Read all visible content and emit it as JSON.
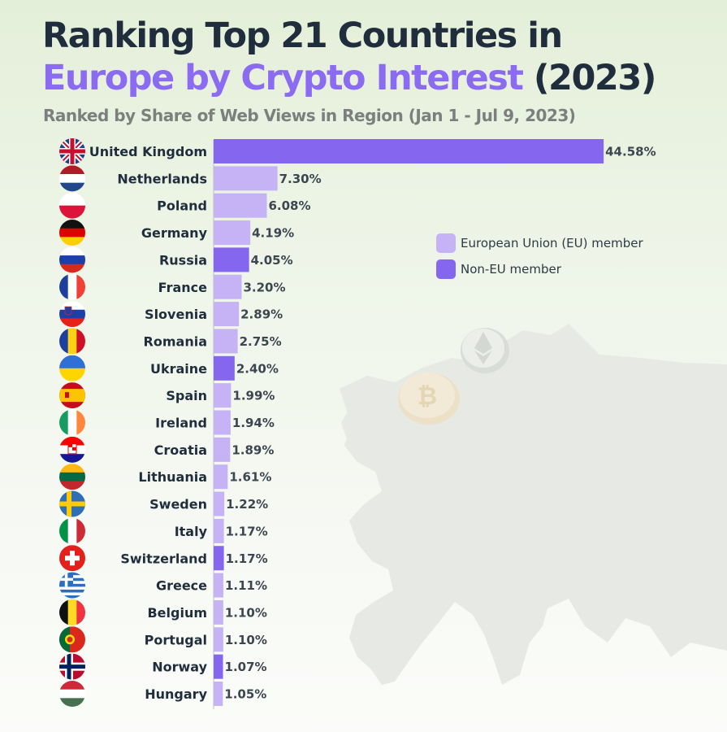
{
  "header": {
    "title_line1": "Ranking Top 21 Countries in",
    "title_accent": "Europe by Crypto Interest",
    "title_year": "(2023)",
    "subtitle": "Ranked by Share of Web Views in Region (Jan 1 - Jul 9, 2023)"
  },
  "colors": {
    "eu": "#c5b3f6",
    "non_eu": "#8566ee",
    "title_accent": "#8a6bf2",
    "text_dark": "#1f2d3d"
  },
  "legend": {
    "eu_label": "European Union (EU) member",
    "non_eu_label": "Non-EU member"
  },
  "chart_data": {
    "type": "bar",
    "orientation": "horizontal",
    "title": "Ranking Top 21 Countries in Europe by Crypto Interest (2023)",
    "subtitle": "Ranked by Share of Web Views in Region (Jan 1 - Jul 9, 2023)",
    "unit": "%",
    "legend_placement": "right",
    "grid": false,
    "categories": [
      "United Kingdom",
      "Netherlands",
      "Poland",
      "Germany",
      "Russia",
      "France",
      "Slovenia",
      "Romania",
      "Ukraine",
      "Spain",
      "Ireland",
      "Croatia",
      "Lithuania",
      "Sweden",
      "Italy",
      "Switzerland",
      "Greece",
      "Belgium",
      "Portugal",
      "Norway",
      "Hungary"
    ],
    "values": [
      44.58,
      7.3,
      6.08,
      4.19,
      4.05,
      3.2,
      2.89,
      2.75,
      2.4,
      1.99,
      1.94,
      1.89,
      1.61,
      1.22,
      1.17,
      1.17,
      1.11,
      1.1,
      1.1,
      1.07,
      1.05
    ],
    "value_labels": [
      "44.58%",
      "7.30%",
      "6.08%",
      "4.19%",
      "4.05%",
      "3.20%",
      "2.89%",
      "2.75%",
      "2.40%",
      "1.99%",
      "1.94%",
      "1.89%",
      "1.61%",
      "1.22%",
      "1.17%",
      "1.17%",
      "1.11%",
      "1.10%",
      "1.10%",
      "1.07%",
      "1.05%"
    ],
    "eu_member": [
      false,
      true,
      true,
      true,
      false,
      true,
      true,
      true,
      false,
      true,
      true,
      true,
      true,
      true,
      true,
      false,
      true,
      true,
      true,
      false,
      true
    ],
    "flag_icons": [
      "uk-flag-icon",
      "netherlands-flag-icon",
      "poland-flag-icon",
      "germany-flag-icon",
      "russia-flag-icon",
      "france-flag-icon",
      "slovenia-flag-icon",
      "romania-flag-icon",
      "ukraine-flag-icon",
      "spain-flag-icon",
      "ireland-flag-icon",
      "croatia-flag-icon",
      "lithuania-flag-icon",
      "sweden-flag-icon",
      "italy-flag-icon",
      "switzerland-flag-icon",
      "greece-flag-icon",
      "belgium-flag-icon",
      "portugal-flag-icon",
      "norway-flag-icon",
      "hungary-flag-icon"
    ]
  }
}
